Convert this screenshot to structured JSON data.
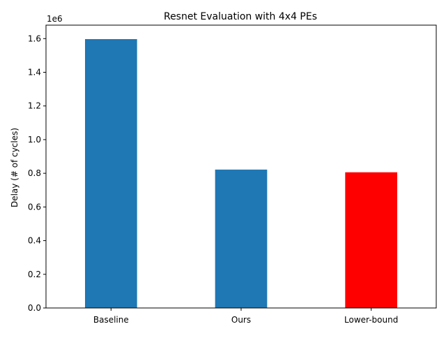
{
  "chart_data": {
    "type": "bar",
    "title": "Resnet Evaluation with 4x4 PEs",
    "xlabel": "",
    "ylabel": "Delay (# of cycles)",
    "offset_label": "1e6",
    "categories": [
      "Baseline",
      "Ours",
      "Lower-bound"
    ],
    "values": [
      1597000,
      822000,
      806000
    ],
    "bar_colors": [
      "#1f77b4",
      "#1f77b4",
      "#ff0000"
    ],
    "ylim": [
      0,
      1680000
    ],
    "yticks": [
      0,
      200000,
      400000,
      600000,
      800000,
      1000000,
      1200000,
      1400000,
      1600000
    ],
    "ytick_labels": [
      "0.0",
      "0.2",
      "0.4",
      "0.6",
      "0.8",
      "1.0",
      "1.2",
      "1.4",
      "1.6"
    ],
    "grid": false,
    "legend": "none"
  }
}
